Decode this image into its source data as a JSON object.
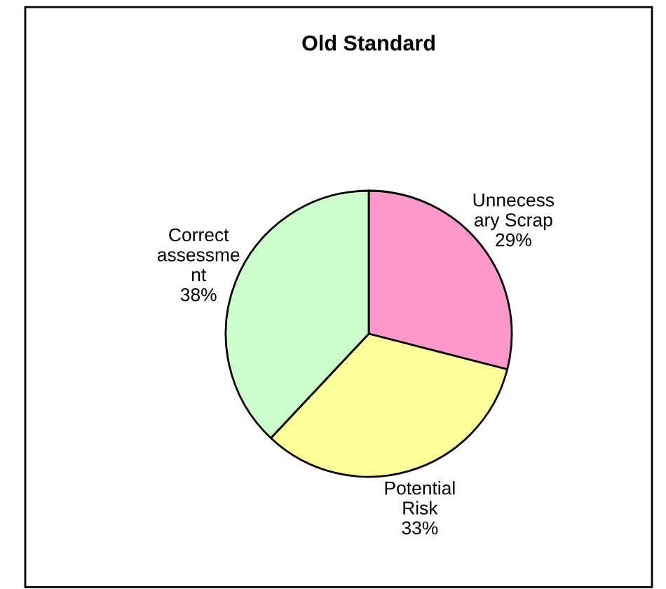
{
  "chart_data": {
    "type": "pie",
    "title": "Old Standard",
    "categories": [
      "Unnecessary Scrap",
      "Potential Risk",
      "Correct assessment"
    ],
    "values": [
      29,
      33,
      38
    ],
    "colors": [
      "#ff99cc",
      "#ffff99",
      "#ccffcc"
    ],
    "value_labels": [
      "29%",
      "33%",
      "38%"
    ],
    "legend": false
  }
}
